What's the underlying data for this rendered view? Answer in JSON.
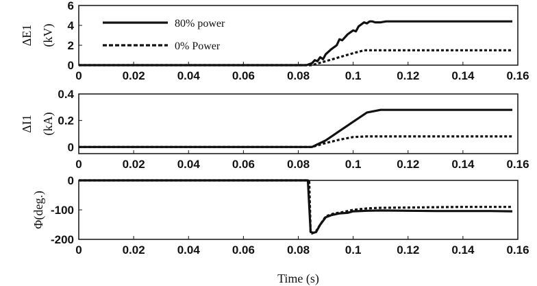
{
  "chart_data": [
    {
      "type": "line",
      "ylabel": "ΔE1",
      "yunit": "(kV)",
      "xlim": [
        0,
        0.16
      ],
      "ylim": [
        0,
        6
      ],
      "xticks": [
        "0",
        "0.02",
        "0.04",
        "0.06",
        "0.08",
        "0.1",
        "0.12",
        "0.14",
        "0.16"
      ],
      "yticks": [
        "0",
        "2",
        "4",
        "6"
      ],
      "legend": {
        "position": "top-left"
      },
      "series": [
        {
          "name": "80% power",
          "style": "solid",
          "x": [
            0,
            0.083,
            0.085,
            0.086,
            0.087,
            0.088,
            0.089,
            0.09,
            0.092,
            0.094,
            0.095,
            0.096,
            0.098,
            0.1,
            0.101,
            0.102,
            0.104,
            0.105,
            0.106,
            0.107,
            0.108,
            0.11,
            0.112,
            0.158
          ],
          "y": [
            0,
            0,
            0.2,
            0.5,
            0.4,
            0.8,
            0.6,
            1.1,
            1.6,
            2.0,
            2.6,
            2.5,
            3.1,
            3.5,
            3.4,
            3.9,
            4.3,
            4.2,
            4.4,
            4.4,
            4.3,
            4.3,
            4.4,
            4.4
          ]
        },
        {
          "name": "0% Power",
          "style": "dashed",
          "x": [
            0,
            0.085,
            0.09,
            0.095,
            0.1,
            0.104,
            0.106,
            0.158
          ],
          "y": [
            0,
            0,
            0.4,
            0.8,
            1.2,
            1.5,
            1.5,
            1.5
          ]
        }
      ]
    },
    {
      "type": "line",
      "ylabel": "ΔI1",
      "yunit": "(kA)",
      "xlim": [
        0,
        0.16
      ],
      "ylim": [
        -0.05,
        0.4
      ],
      "xticks": [
        "0",
        "0.02",
        "0.04",
        "0.06",
        "0.08",
        "0.1",
        "0.12",
        "0.14",
        "0.16"
      ],
      "yticks": [
        "0",
        "0.2",
        "0.4"
      ],
      "series": [
        {
          "name": "",
          "style": "solid",
          "x": [
            0,
            0.085,
            0.09,
            0.095,
            0.1,
            0.105,
            0.11,
            0.158
          ],
          "y": [
            0,
            0,
            0.05,
            0.12,
            0.19,
            0.26,
            0.28,
            0.28
          ]
        },
        {
          "name": "",
          "style": "dashed",
          "x": [
            0,
            0.085,
            0.09,
            0.095,
            0.1,
            0.105,
            0.158
          ],
          "y": [
            0,
            0,
            0.03,
            0.055,
            0.075,
            0.08,
            0.08
          ]
        }
      ]
    },
    {
      "type": "line",
      "ylabel": "Φ(deg.)",
      "xlabel": "Time (s)",
      "xlim": [
        0,
        0.16
      ],
      "ylim": [
        -200,
        0
      ],
      "xticks": [
        "0",
        "0.02",
        "0.04",
        "0.06",
        "0.08",
        "0.1",
        "0.12",
        "0.14",
        "0.16"
      ],
      "yticks": [
        "0",
        "-100",
        "-200"
      ],
      "series": [
        {
          "name": "",
          "style": "solid",
          "x": [
            0,
            0.0835,
            0.0845,
            0.0855,
            0.0865,
            0.088,
            0.09,
            0.092,
            0.095,
            0.098,
            0.1,
            0.105,
            0.11,
            0.12,
            0.13,
            0.14,
            0.15,
            0.158
          ],
          "y": [
            0,
            0,
            -175,
            -178,
            -175,
            -150,
            -125,
            -118,
            -112,
            -110,
            -105,
            -103,
            -102,
            -103,
            -104,
            -104,
            -104,
            -105
          ]
        },
        {
          "name": "",
          "style": "dashed",
          "x": [
            0,
            0.083,
            0.084,
            0.0845,
            0.085,
            0.0865,
            0.088,
            0.09,
            0.093,
            0.096,
            0.1,
            0.105,
            0.11,
            0.12,
            0.13,
            0.14,
            0.15,
            0.158
          ],
          "y": [
            0,
            0,
            -5,
            -178,
            -180,
            -172,
            -150,
            -122,
            -112,
            -108,
            -100,
            -95,
            -93,
            -92,
            -91,
            -90,
            -90,
            -90
          ]
        }
      ]
    }
  ]
}
